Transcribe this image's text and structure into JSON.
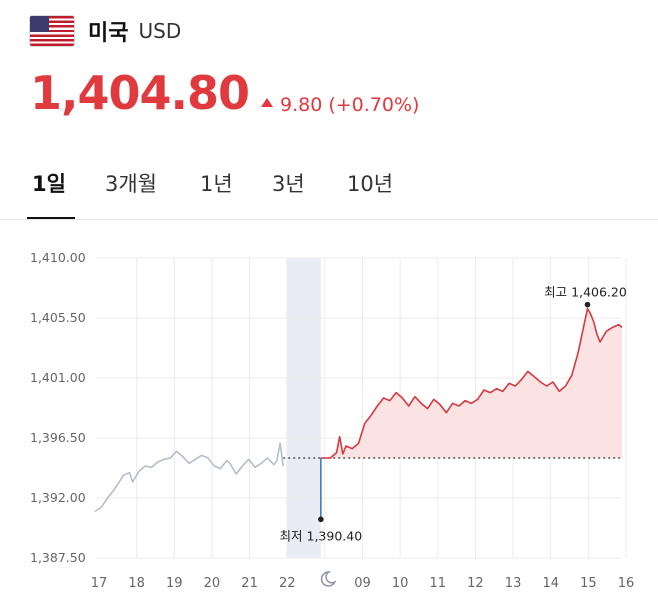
{
  "currency": {
    "flag_icon": "us-flag-icon",
    "name": "미국",
    "code": "USD",
    "price": "1,404.80",
    "change": "9.80",
    "change_pct": "(+0.70%)",
    "change_direction": "up",
    "up_color": "#e03a3e"
  },
  "tabs": [
    {
      "label": "1일",
      "active": true
    },
    {
      "label": "3개월",
      "active": false
    },
    {
      "label": "1년",
      "active": false
    },
    {
      "label": "3년",
      "active": false
    },
    {
      "label": "10년",
      "active": false
    }
  ],
  "chart_data": {
    "type": "line",
    "yticks": [
      "1,410.00",
      "1,405.50",
      "1,401.00",
      "1,396.50",
      "1,392.00",
      "1,387.50"
    ],
    "ylim": [
      1387.5,
      1410.0
    ],
    "xticks": [
      "17",
      "18",
      "19",
      "20",
      "21",
      "22",
      "moon-icon",
      "09",
      "10",
      "11",
      "12",
      "13",
      "14",
      "15",
      "16"
    ],
    "reference_line": 1395.0,
    "previous_session": {
      "color": "#b8bccc",
      "points": [
        [
          0,
          1391.0
        ],
        [
          2,
          1391.3
        ],
        [
          4,
          1392.0
        ],
        [
          6,
          1392.6
        ],
        [
          8,
          1393.3
        ],
        [
          9,
          1393.7
        ],
        [
          11,
          1393.9
        ],
        [
          12,
          1393.2
        ],
        [
          14,
          1394.0
        ],
        [
          16,
          1394.4
        ],
        [
          18,
          1394.3
        ],
        [
          20,
          1394.7
        ],
        [
          22,
          1394.9
        ],
        [
          24,
          1395.0
        ],
        [
          26,
          1395.5
        ],
        [
          28,
          1395.1
        ],
        [
          30,
          1394.6
        ],
        [
          32,
          1394.9
        ],
        [
          34,
          1395.2
        ],
        [
          36,
          1395.0
        ],
        [
          38,
          1394.4
        ],
        [
          40,
          1394.2
        ],
        [
          42,
          1394.8
        ],
        [
          43,
          1394.6
        ],
        [
          45,
          1393.8
        ],
        [
          47,
          1394.4
        ],
        [
          49,
          1394.9
        ],
        [
          51,
          1394.3
        ],
        [
          53,
          1394.6
        ],
        [
          55,
          1395.0
        ],
        [
          57,
          1394.5
        ],
        [
          58,
          1394.8
        ],
        [
          59,
          1396.1
        ],
        [
          60,
          1394.4
        ]
      ]
    },
    "night_band": {
      "from": 61,
      "to": 72,
      "color": "#e9ebf5"
    },
    "current_session": {
      "color": "#d63a40",
      "fill": "#fbe2e3",
      "points": [
        [
          72,
          1395.0
        ],
        [
          75,
          1395.0
        ],
        [
          77,
          1395.4
        ],
        [
          78,
          1396.6
        ],
        [
          79,
          1395.3
        ],
        [
          80,
          1395.9
        ],
        [
          82,
          1395.7
        ],
        [
          84,
          1396.1
        ],
        [
          86,
          1397.6
        ],
        [
          88,
          1398.2
        ],
        [
          90,
          1398.9
        ],
        [
          92,
          1399.5
        ],
        [
          94,
          1399.3
        ],
        [
          96,
          1399.9
        ],
        [
          98,
          1399.5
        ],
        [
          100,
          1398.9
        ],
        [
          102,
          1399.6
        ],
        [
          104,
          1399.1
        ],
        [
          106,
          1398.7
        ],
        [
          108,
          1399.4
        ],
        [
          110,
          1399.0
        ],
        [
          112,
          1398.4
        ],
        [
          114,
          1399.1
        ],
        [
          116,
          1398.9
        ],
        [
          118,
          1399.3
        ],
        [
          120,
          1399.1
        ],
        [
          122,
          1399.4
        ],
        [
          124,
          1400.1
        ],
        [
          126,
          1399.9
        ],
        [
          128,
          1400.2
        ],
        [
          130,
          1400.0
        ],
        [
          132,
          1400.6
        ],
        [
          134,
          1400.4
        ],
        [
          136,
          1400.9
        ],
        [
          138,
          1401.5
        ],
        [
          140,
          1401.1
        ],
        [
          142,
          1400.7
        ],
        [
          144,
          1400.4
        ],
        [
          146,
          1400.7
        ],
        [
          148,
          1400.0
        ],
        [
          150,
          1400.4
        ],
        [
          152,
          1401.2
        ],
        [
          154,
          1402.9
        ],
        [
          156,
          1405.1
        ],
        [
          157,
          1406.2
        ],
        [
          158,
          1405.8
        ],
        [
          159,
          1405.2
        ],
        [
          160,
          1404.3
        ],
        [
          161,
          1403.7
        ],
        [
          163,
          1404.5
        ],
        [
          165,
          1404.8
        ],
        [
          167,
          1405.0
        ],
        [
          168,
          1404.8
        ]
      ]
    },
    "annotations": {
      "high": {
        "label": "최고 1,406.20",
        "x": 157,
        "y": 1406.2
      },
      "low": {
        "label": "최저 1,390.40",
        "x": 72,
        "y": 1390.4
      }
    },
    "grid": true
  }
}
